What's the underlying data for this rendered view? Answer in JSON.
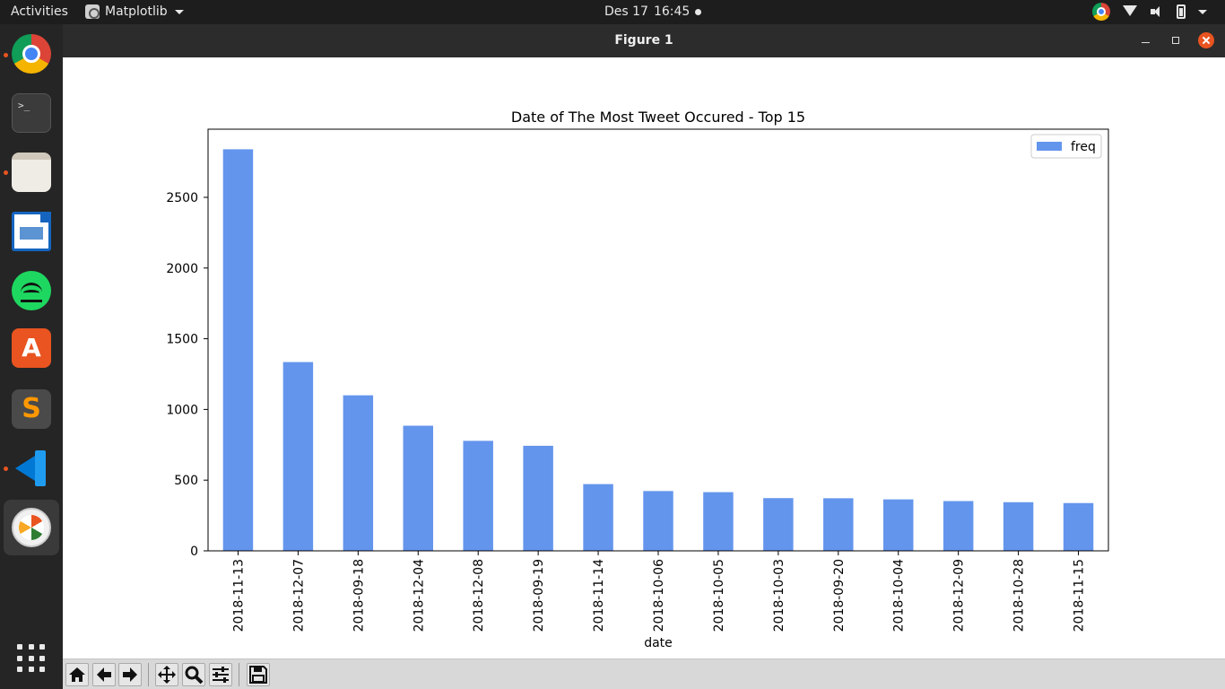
{
  "topbar": {
    "activities": "Activities",
    "app_name": "Matplotlib",
    "date": "Des 17",
    "time": "16:45"
  },
  "dock": {
    "items": [
      {
        "name": "chrome-icon",
        "running": true
      },
      {
        "name": "terminal-icon",
        "running": false
      },
      {
        "name": "files-icon",
        "running": true
      },
      {
        "name": "libreoffice-writer-icon",
        "running": false
      },
      {
        "name": "spotify-icon",
        "running": false
      },
      {
        "name": "software-center-icon",
        "running": false
      },
      {
        "name": "sublime-text-icon",
        "running": false
      },
      {
        "name": "vscode-icon",
        "running": true
      },
      {
        "name": "matplotlib-icon",
        "running": true
      }
    ],
    "terminal_glyph": ">_",
    "software_glyph": "A",
    "sublime_glyph": "S"
  },
  "window": {
    "title": "Figure 1"
  },
  "colors": {
    "bar": "#6495ed",
    "accent": "#e95420"
  },
  "toolbar": {
    "buttons": [
      "home-icon",
      "back-arrow-icon",
      "forward-arrow-icon",
      "pan-icon",
      "zoom-icon",
      "configure-subplots-icon",
      "save-icon"
    ]
  },
  "chart_data": {
    "type": "bar",
    "title": "Date of The Most Tweet Occured - Top 15",
    "xlabel": "date",
    "ylabel": "",
    "categories": [
      "2018-11-13",
      "2018-12-07",
      "2018-09-18",
      "2018-12-04",
      "2018-12-08",
      "2018-09-19",
      "2018-11-14",
      "2018-10-06",
      "2018-10-05",
      "2018-10-03",
      "2018-09-20",
      "2018-10-04",
      "2018-12-09",
      "2018-10-28",
      "2018-11-15"
    ],
    "series": [
      {
        "name": "freq",
        "values": [
          2840,
          1335,
          1100,
          885,
          778,
          743,
          472,
          423,
          415,
          373,
          372,
          364,
          352,
          344,
          338
        ]
      }
    ],
    "yticks": [
      0,
      500,
      1000,
      1500,
      2000,
      2500
    ],
    "ylim": [
      0,
      2982
    ],
    "legend": "top-right",
    "grid": false
  }
}
